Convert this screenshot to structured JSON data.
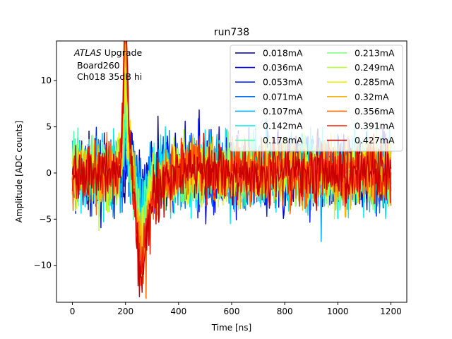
{
  "chart_data": {
    "type": "line",
    "title": "run738",
    "xlabel": "Time [ns]",
    "ylabel": "Amplitude [ADC counts]",
    "xlim": [
      -60,
      1260
    ],
    "ylim": [
      -14.0,
      14.3
    ],
    "xticks": [
      0,
      200,
      400,
      600,
      800,
      1000,
      1200
    ],
    "yticks": [
      -10,
      -5,
      0,
      5,
      10
    ],
    "annotation": {
      "line1_italic": "ATLAS",
      "line1_rest": " Upgrade",
      "line2": "Board260",
      "line3": "Ch018 35dB hi"
    },
    "signal_model": {
      "t_start": 0,
      "t_end": 1200,
      "n_samples": 480,
      "peak_time": 200,
      "peak_value": 13.5,
      "trough_time": 260,
      "trough_value": -12.8
    },
    "series": [
      {
        "name": "0.018mA",
        "color": "#00007f",
        "amplitude": 0.06,
        "noise": 1.7
      },
      {
        "name": "0.036mA",
        "color": "#0000e0",
        "amplitude": 0.09,
        "noise": 2.2
      },
      {
        "name": "0.053mA",
        "color": "#0020ff",
        "amplitude": 0.13,
        "noise": 1.9
      },
      {
        "name": "0.071mA",
        "color": "#0070ff",
        "amplitude": 0.17,
        "noise": 1.8
      },
      {
        "name": "0.107mA",
        "color": "#00b0f0",
        "amplitude": 0.25,
        "noise": 1.9
      },
      {
        "name": "0.142mA",
        "color": "#00e8f0",
        "amplitude": 0.33,
        "noise": 2.3
      },
      {
        "name": "0.178mA",
        "color": "#50ffa8",
        "amplitude": 0.41,
        "noise": 1.8
      },
      {
        "name": "0.213mA",
        "color": "#7cff79",
        "amplitude": 0.48,
        "noise": 1.7
      },
      {
        "name": "0.249mA",
        "color": "#b8ff40",
        "amplitude": 0.56,
        "noise": 1.7
      },
      {
        "name": "0.285mA",
        "color": "#f0ee00",
        "amplitude": 0.64,
        "noise": 1.6
      },
      {
        "name": "0.32mA",
        "color": "#ffb000",
        "amplitude": 0.74,
        "noise": 1.6
      },
      {
        "name": "0.356mA",
        "color": "#ff6a00",
        "amplitude": 0.85,
        "noise": 1.6
      },
      {
        "name": "0.391mA",
        "color": "#f02000",
        "amplitude": 0.93,
        "noise": 1.6
      },
      {
        "name": "0.427mA",
        "color": "#c80000",
        "amplitude": 1.0,
        "noise": 1.5
      }
    ]
  }
}
